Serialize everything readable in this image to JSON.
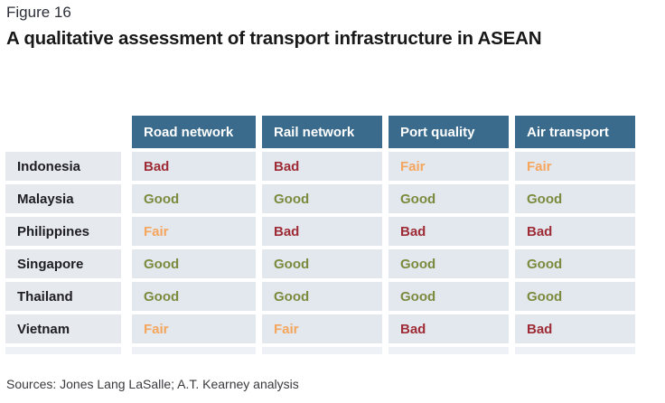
{
  "figure_label": "Figure 16",
  "title": "A qualitative assessment of transport infrastructure in ASEAN",
  "chart_data": {
    "type": "table",
    "title": "A qualitative assessment of transport infrastructure in ASEAN",
    "column_headers": [
      "Road network",
      "Rail network",
      "Port quality",
      "Air transport"
    ],
    "row_headers": [
      "Indonesia",
      "Malaysia",
      "Philippines",
      "Singapore",
      "Thailand",
      "Vietnam"
    ],
    "values": [
      [
        "Bad",
        "Bad",
        "Fair",
        "Fair"
      ],
      [
        "Good",
        "Good",
        "Good",
        "Good"
      ],
      [
        "Fair",
        "Bad",
        "Bad",
        "Bad"
      ],
      [
        "Good",
        "Good",
        "Good",
        "Good"
      ],
      [
        "Good",
        "Good",
        "Good",
        "Good"
      ],
      [
        "Fair",
        "Fair",
        "Bad",
        "Bad"
      ]
    ],
    "rating_colors": {
      "Good": "#7c8a3e",
      "Fair": "#f5a55c",
      "Bad": "#9e2b35"
    },
    "legend_position": "none",
    "grid": false
  },
  "colors": {
    "header_bg": "#3a6b8c",
    "header_text": "#ffffff",
    "row_bg": "#e3e8ee",
    "row_header_bg": "#e6e9ed",
    "strip_bg": "#eef2f6",
    "figure_label_color": "#2e3039",
    "title_color": "#191919",
    "country_text": "#1d1d22",
    "sources_color": "#3a3a3e"
  },
  "sources": "Sources: Jones Lang LaSalle; A.T. Kearney analysis"
}
